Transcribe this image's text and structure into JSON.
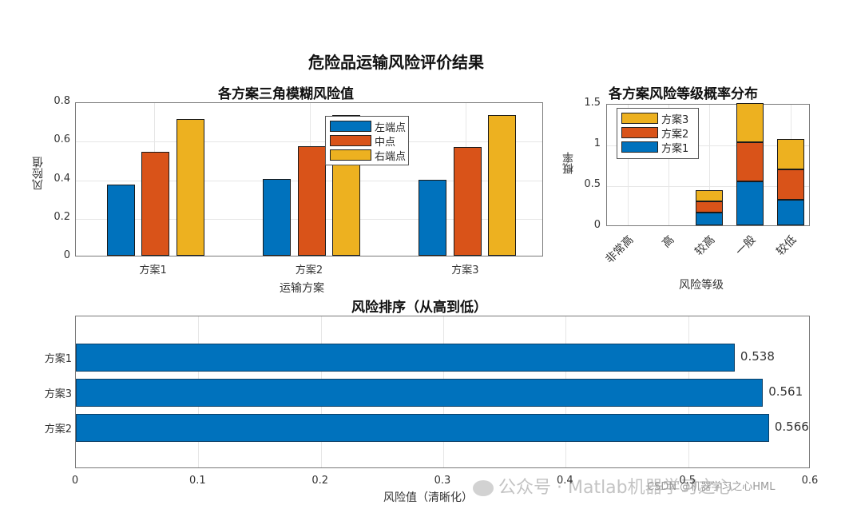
{
  "figure": {
    "main_title": "危险品运输风险评价结果",
    "watermark": "公众号 · Matlab机器学习之心",
    "watermark2": "CSDN @机器学习之心HML"
  },
  "colors": {
    "blue": "#0072BD",
    "orange": "#D95319",
    "yellow": "#EDB120"
  },
  "chart_data": [
    {
      "type": "bar",
      "title": "各方案三角模糊风险值",
      "xlabel": "运输方案",
      "ylabel": "风险值",
      "categories": [
        "方案1",
        "方案2",
        "方案3"
      ],
      "series": [
        {
          "name": "左端点",
          "values": [
            0.37,
            0.4,
            0.395
          ]
        },
        {
          "name": "中点",
          "values": [
            0.54,
            0.57,
            0.565
          ]
        },
        {
          "name": "右端点",
          "values": [
            0.71,
            0.73,
            0.73
          ]
        }
      ],
      "ylim": [
        0,
        0.8
      ],
      "yticks": [
        "0",
        "0.2",
        "0.4",
        "0.6",
        "0.8"
      ],
      "grid": true,
      "legend_position": "top-center"
    },
    {
      "type": "bar",
      "stacked": true,
      "title": "各方案风险等级概率分布",
      "xlabel": "风险等级",
      "ylabel": "概率",
      "categories": [
        "非常高",
        "高",
        "较高",
        "一般",
        "较低"
      ],
      "series": [
        {
          "name": "方案1",
          "values": [
            0,
            0,
            0.16,
            0.54,
            0.31
          ]
        },
        {
          "name": "方案2",
          "values": [
            0,
            0,
            0.13,
            0.48,
            0.38
          ]
        },
        {
          "name": "方案3",
          "values": [
            0,
            0,
            0.14,
            0.5,
            0.37
          ]
        }
      ],
      "ylim": [
        0,
        1.5
      ],
      "yticks": [
        "0",
        "0.5",
        "1",
        "1.5"
      ],
      "grid": true,
      "legend_position": "top-left"
    },
    {
      "type": "bar",
      "orientation": "horizontal",
      "title": "风险排序（从高到低）",
      "xlabel": "风险值（清晰化）",
      "ylabel": "",
      "categories": [
        "方案1",
        "方案3",
        "方案2"
      ],
      "values": [
        0.538,
        0.561,
        0.566
      ],
      "data_labels": [
        "0.538",
        "0.561",
        "0.566"
      ],
      "xlim": [
        0,
        0.6
      ],
      "xticks": [
        "0",
        "0.1",
        "0.2",
        "0.3",
        "0.4",
        "0.5",
        "0.6"
      ],
      "grid": true
    }
  ]
}
